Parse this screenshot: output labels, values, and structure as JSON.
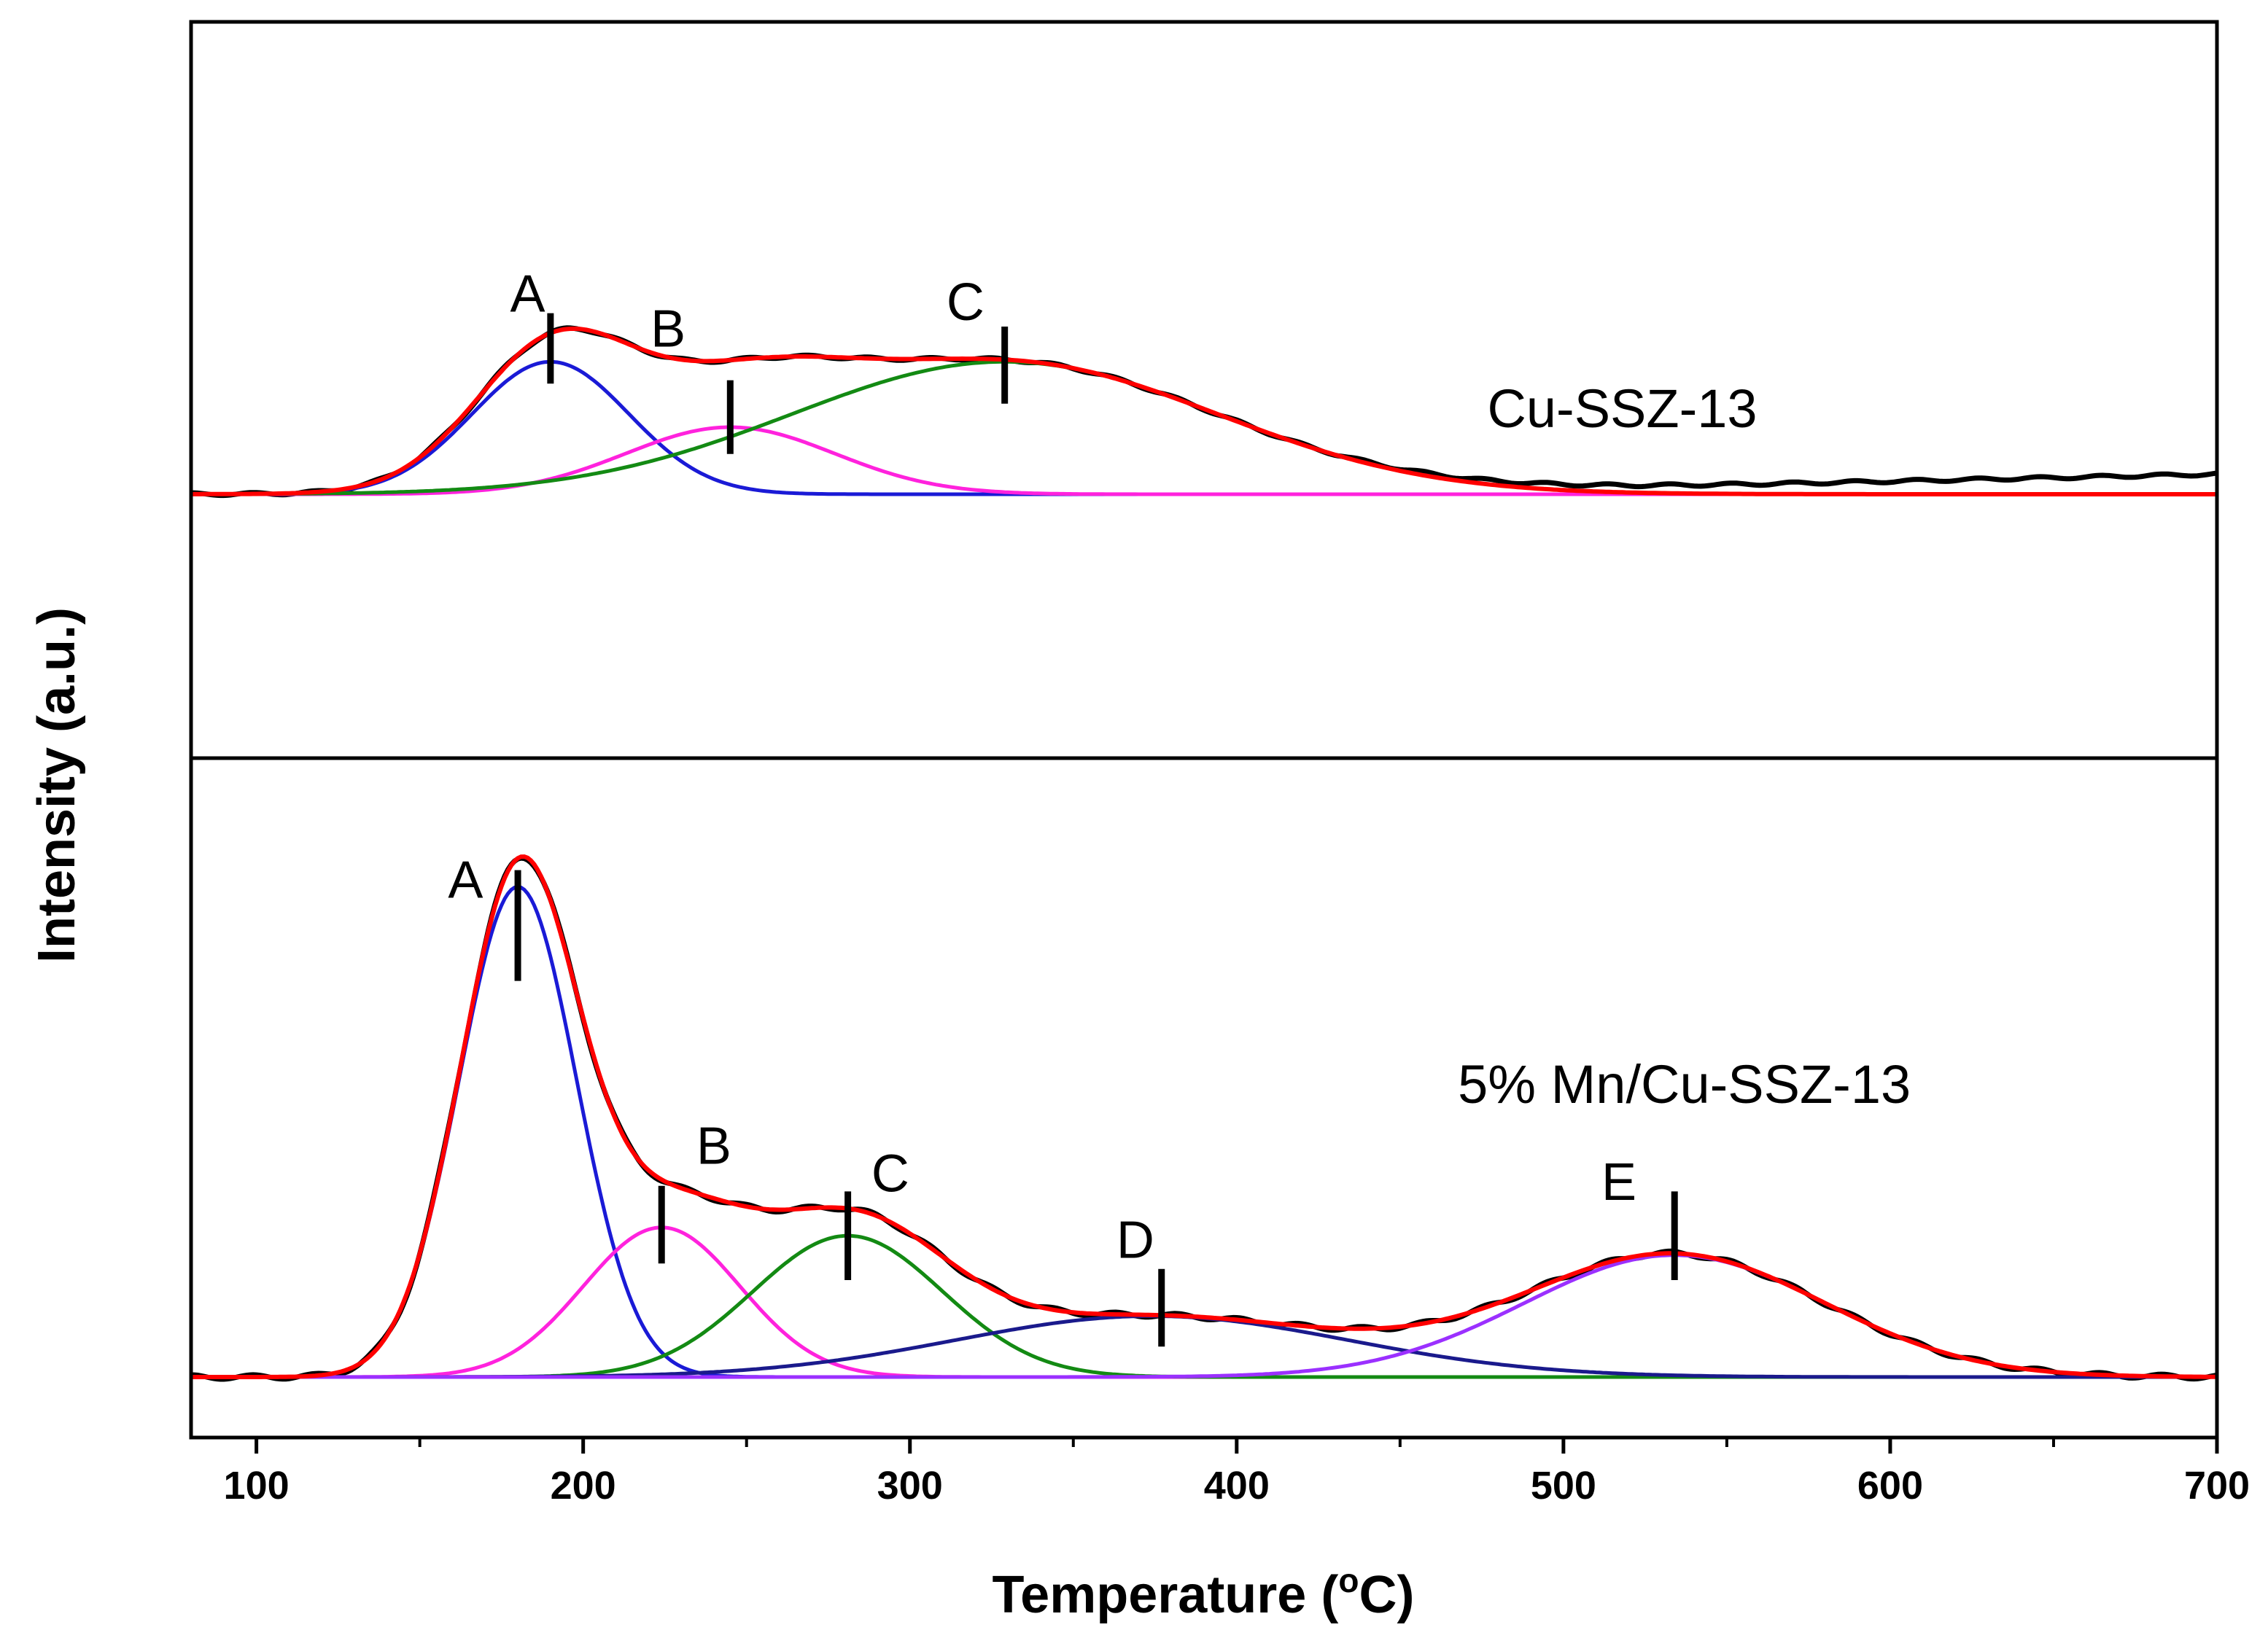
{
  "chart_data": {
    "type": "line",
    "xlabel": {
      "text": "Temperature (",
      "superscript": "o",
      "suffix": "C)"
    },
    "ylabel": "Intensity (a.u.)",
    "xlim": [
      80,
      700
    ],
    "xticks": [
      100,
      200,
      300,
      400,
      500,
      600,
      700
    ],
    "xtick_labels": [
      "100",
      "200",
      "300",
      "400",
      "500",
      "600",
      "700"
    ],
    "minor_xticks": [
      150,
      250,
      350,
      450,
      550,
      650
    ],
    "panels": [
      {
        "id": "top",
        "sample_label": "Cu-SSZ-13",
        "ylim": [
          -0.15,
          1.15
        ],
        "baseline": 0,
        "peaks": [
          {
            "label": "A",
            "center": 190,
            "amplitude": 0.395,
            "sigma": 24,
            "color": "#1a1ad6"
          },
          {
            "label": "B",
            "center": 245,
            "amplitude": 0.2,
            "sigma": 32,
            "color": "#ff22dd"
          },
          {
            "label": "C",
            "center": 329,
            "amplitude": 0.395,
            "sigma": 65,
            "color": "#138a13"
          }
        ],
        "markers": [
          {
            "x": 190,
            "y_bottom": 0.33,
            "y_top": 0.54
          },
          {
            "x": 245,
            "y_bottom": 0.12,
            "y_top": 0.34
          },
          {
            "x": 329,
            "y_bottom": 0.27,
            "y_top": 0.5
          }
        ],
        "peak_labels": [
          {
            "text": "A",
            "x": 183,
            "y": 0.545
          },
          {
            "text": "B",
            "x": 226,
            "y": 0.44
          },
          {
            "text": "C",
            "x": 317,
            "y": 0.52
          }
        ],
        "sample_label_pos": {
          "x": 518,
          "y": 0.2
        },
        "fit_color": "#ff0000",
        "data_color": "#000000",
        "data_tail": {
          "start": 420,
          "end": 700,
          "end_value": 0.06
        }
      },
      {
        "id": "bottom",
        "sample_label": "5% Mn/Cu-SSZ-13",
        "ylim": [
          -0.05,
          1.05
        ],
        "baseline": 0,
        "peaks": [
          {
            "label": "A",
            "center": 180,
            "amplitude": 0.885,
            "sigma": 18,
            "color": "#1a1ad6"
          },
          {
            "label": "B",
            "center": 224,
            "amplitude": 0.27,
            "sigma": 24,
            "color": "#ff22dd"
          },
          {
            "label": "C",
            "center": 281,
            "amplitude": 0.255,
            "sigma": 29,
            "color": "#138a13"
          },
          {
            "label": "D",
            "center": 374,
            "amplitude": 0.11,
            "sigma": 60,
            "color": "#1a1a8c"
          },
          {
            "label": "E",
            "center": 534,
            "amplitude": 0.22,
            "sigma": 46,
            "color": "#9b30ff"
          }
        ],
        "markers": [
          {
            "x": 180,
            "y_bottom": 0.715,
            "y_top": 0.915
          },
          {
            "x": 224,
            "y_bottom": 0.205,
            "y_top": 0.345
          },
          {
            "x": 281,
            "y_bottom": 0.175,
            "y_top": 0.335
          },
          {
            "x": 377,
            "y_bottom": 0.055,
            "y_top": 0.195
          },
          {
            "x": 534,
            "y_bottom": 0.175,
            "y_top": 0.335
          }
        ],
        "peak_labels": [
          {
            "text": "A",
            "x": 164,
            "y": 0.865
          },
          {
            "text": "B",
            "x": 240,
            "y": 0.385
          },
          {
            "text": "C",
            "x": 294,
            "y": 0.335
          },
          {
            "text": "D",
            "x": 369,
            "y": 0.215
          },
          {
            "text": "E",
            "x": 517,
            "y": 0.32
          }
        ],
        "sample_label_pos": {
          "x": 537,
          "y": 0.495
        },
        "fit_color": "#ff0000",
        "data_color": "#000000"
      }
    ]
  }
}
